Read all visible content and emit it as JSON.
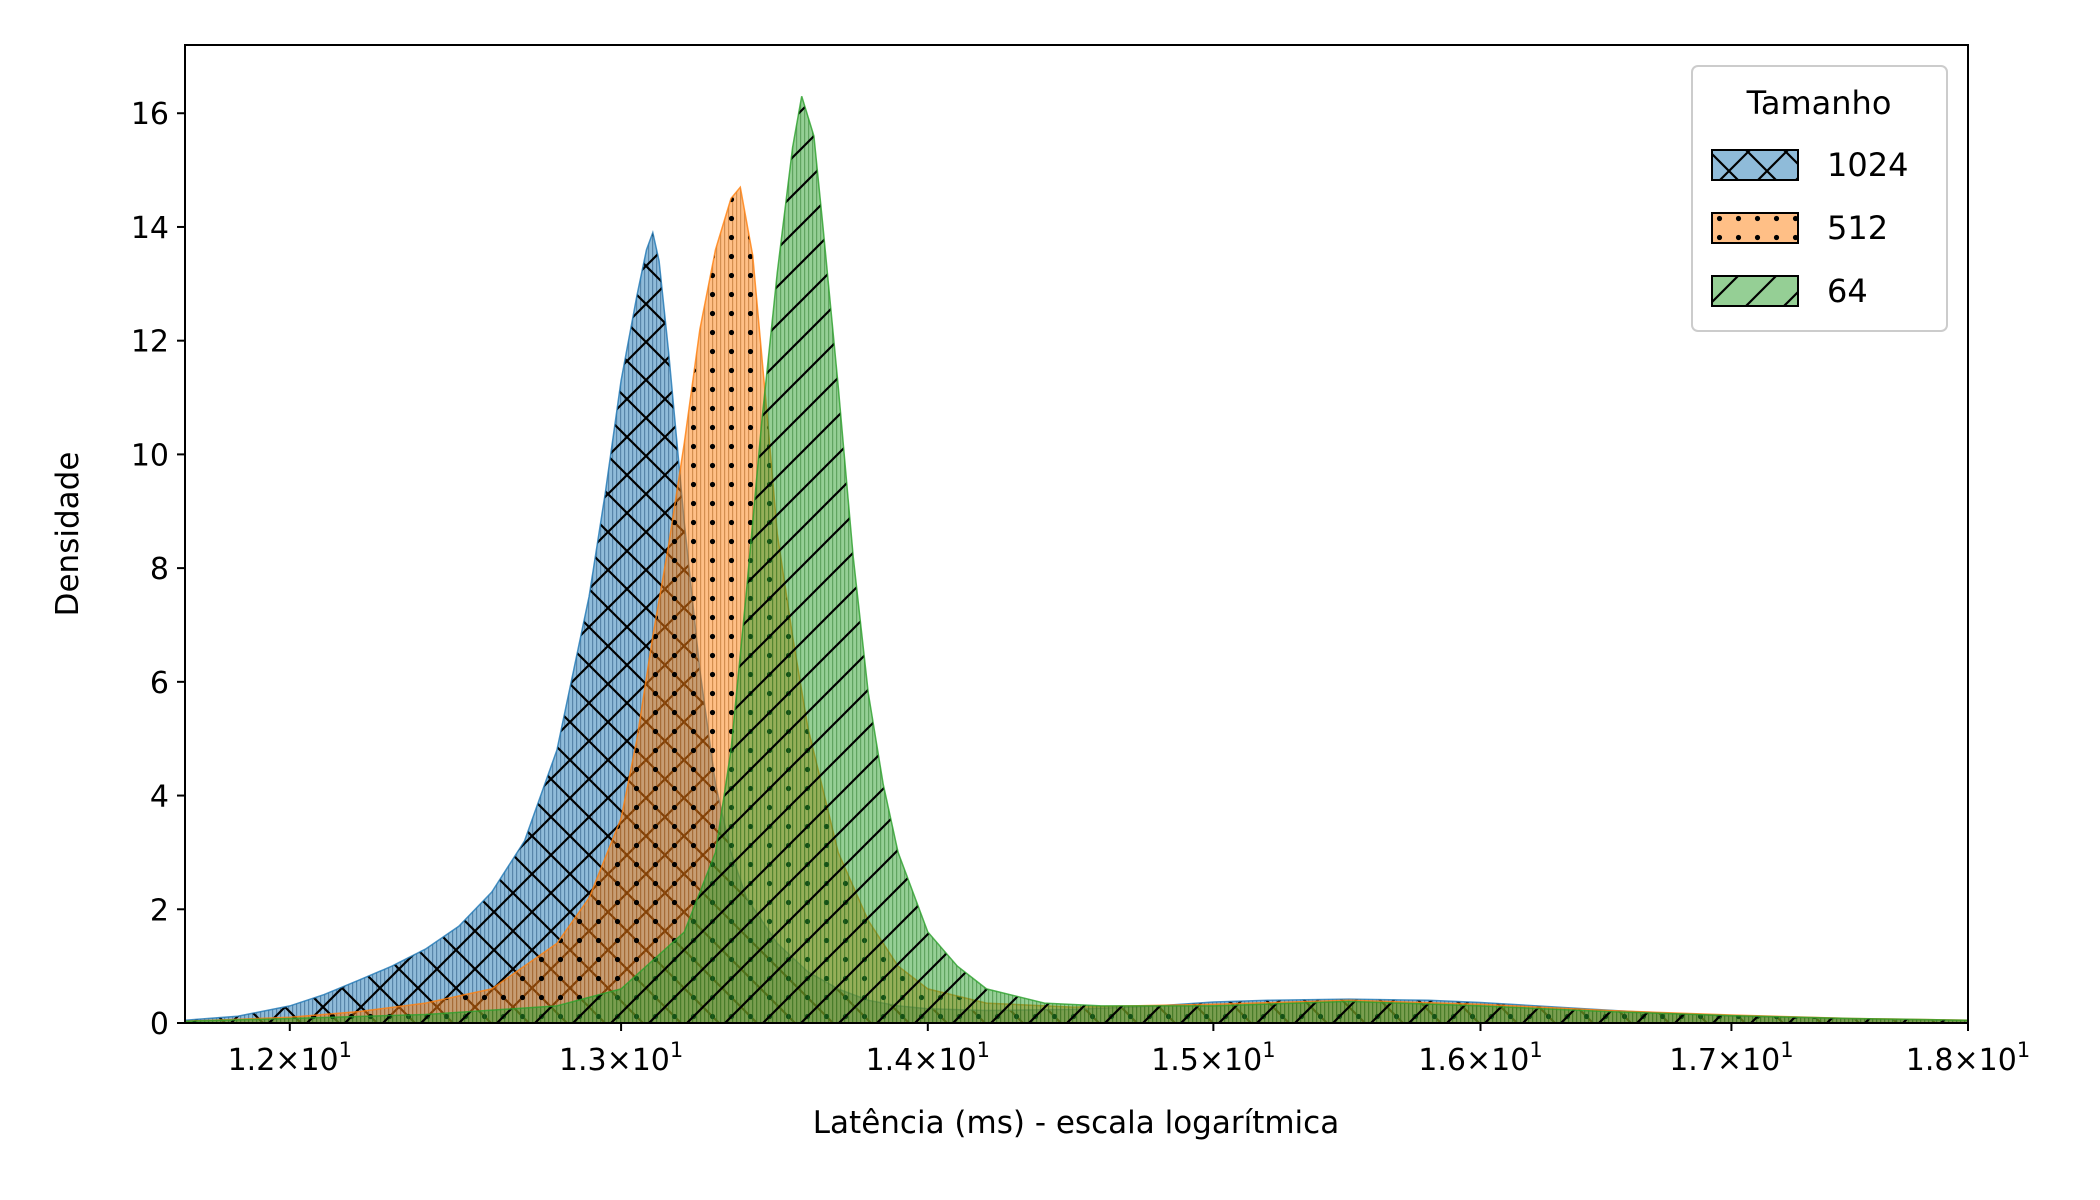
{
  "chart_data": {
    "type": "area",
    "title": "",
    "xlabel": "Latência (ms) - escala logarítmica",
    "ylabel": "Densidade",
    "x_scale": "log",
    "xlim": [
      11.7,
      18.0
    ],
    "ylim": [
      0,
      17.2
    ],
    "x_ticks": [
      {
        "value": 12,
        "mantissa": "1.2",
        "base": "10",
        "exp": "1"
      },
      {
        "value": 13,
        "mantissa": "1.3",
        "base": "10",
        "exp": "1"
      },
      {
        "value": 14,
        "mantissa": "1.4",
        "base": "10",
        "exp": "1"
      },
      {
        "value": 15,
        "mantissa": "1.5",
        "base": "10",
        "exp": "1"
      },
      {
        "value": 16,
        "mantissa": "1.6",
        "base": "10",
        "exp": "1"
      },
      {
        "value": 17,
        "mantissa": "1.7",
        "base": "10",
        "exp": "1"
      },
      {
        "value": 18,
        "mantissa": "1.8",
        "base": "10",
        "exp": "1"
      }
    ],
    "y_ticks": [
      {
        "value": 0,
        "label": "0"
      },
      {
        "value": 2,
        "label": "2"
      },
      {
        "value": 4,
        "label": "4"
      },
      {
        "value": 6,
        "label": "6"
      },
      {
        "value": 8,
        "label": "8"
      },
      {
        "value": 10,
        "label": "10"
      },
      {
        "value": 12,
        "label": "12"
      },
      {
        "value": 14,
        "label": "14"
      },
      {
        "value": 16,
        "label": "16"
      }
    ],
    "grid": false,
    "legend": {
      "title": "Tamanho",
      "position": "top-right"
    },
    "series": [
      {
        "name": "1024",
        "color": "#1f77b4",
        "hatch": "crosshatch",
        "x": [
          11.7,
          11.85,
          12.0,
          12.1,
          12.2,
          12.3,
          12.4,
          12.5,
          12.6,
          12.7,
          12.8,
          12.9,
          12.95,
          13.0,
          13.05,
          13.08,
          13.1,
          13.12,
          13.15,
          13.2,
          13.25,
          13.3,
          13.35,
          13.4,
          13.5,
          13.6,
          13.7,
          13.8,
          13.9,
          14.0,
          14.2,
          14.5,
          14.8,
          15.0,
          15.2,
          15.5,
          15.8,
          16.0,
          16.3,
          16.6,
          17.0,
          17.5,
          18.0
        ],
        "y": [
          0.05,
          0.12,
          0.3,
          0.5,
          0.75,
          1.0,
          1.3,
          1.7,
          2.3,
          3.2,
          4.8,
          7.5,
          9.3,
          11.3,
          12.8,
          13.6,
          13.9,
          13.4,
          11.8,
          8.8,
          6.2,
          4.2,
          3.0,
          2.2,
          1.4,
          0.9,
          0.6,
          0.4,
          0.3,
          0.25,
          0.22,
          0.24,
          0.3,
          0.37,
          0.4,
          0.42,
          0.4,
          0.36,
          0.28,
          0.2,
          0.12,
          0.07,
          0.04
        ]
      },
      {
        "name": "512",
        "color": "#ff7f0e",
        "hatch": "dots",
        "x": [
          11.7,
          12.0,
          12.2,
          12.4,
          12.6,
          12.8,
          12.9,
          13.0,
          13.05,
          13.1,
          13.15,
          13.2,
          13.25,
          13.3,
          13.35,
          13.38,
          13.42,
          13.47,
          13.5,
          13.55,
          13.6,
          13.7,
          13.8,
          13.9,
          14.0,
          14.2,
          14.5,
          15.0,
          15.5,
          16.0,
          16.5,
          17.0,
          17.5,
          18.0
        ],
        "y": [
          0.03,
          0.1,
          0.2,
          0.35,
          0.6,
          1.4,
          2.2,
          3.6,
          5.0,
          6.8,
          8.4,
          10.2,
          12.2,
          13.6,
          14.5,
          14.7,
          13.5,
          10.5,
          8.6,
          6.8,
          5.2,
          3.0,
          1.8,
          1.0,
          0.6,
          0.35,
          0.28,
          0.33,
          0.4,
          0.33,
          0.22,
          0.14,
          0.08,
          0.05
        ]
      },
      {
        "name": "64",
        "color": "#2ca02c",
        "hatch": "diagonal",
        "x": [
          11.7,
          12.0,
          12.4,
          12.8,
          13.0,
          13.2,
          13.3,
          13.35,
          13.4,
          13.45,
          13.5,
          13.55,
          13.58,
          13.62,
          13.65,
          13.7,
          13.75,
          13.8,
          13.85,
          13.9,
          14.0,
          14.1,
          14.2,
          14.4,
          14.6,
          15.0,
          15.5,
          16.0,
          16.5,
          17.0,
          17.5,
          18.0
        ],
        "y": [
          0.03,
          0.08,
          0.15,
          0.3,
          0.6,
          1.6,
          3.0,
          4.8,
          7.6,
          10.6,
          13.2,
          15.4,
          16.3,
          15.6,
          14.0,
          11.2,
          8.2,
          5.8,
          4.2,
          3.0,
          1.6,
          1.0,
          0.6,
          0.35,
          0.3,
          0.3,
          0.38,
          0.3,
          0.2,
          0.13,
          0.08,
          0.05
        ]
      }
    ]
  }
}
